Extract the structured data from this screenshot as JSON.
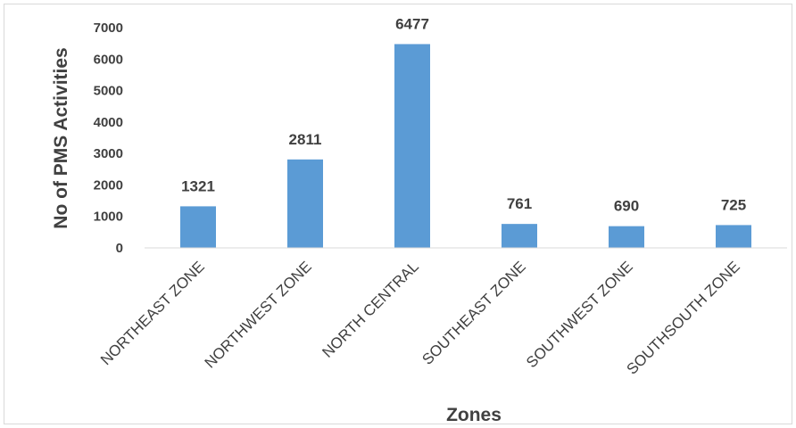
{
  "chart_data": {
    "type": "bar",
    "title": "",
    "xlabel": "Zones",
    "ylabel": "No of PMS Activities",
    "categories": [
      "NORTHEAST ZONE",
      "NORTHWEST ZONE",
      "NORTH CENTRAL",
      "SOUTHEAST ZONE",
      "SOUTHWEST ZONE",
      "SOUTHSOUTH ZONE"
    ],
    "values": [
      1321,
      2811,
      6477,
      761,
      690,
      725
    ],
    "data_labels": [
      "1321",
      "2811",
      "6477",
      "761",
      "690",
      "725"
    ],
    "ylim": [
      0,
      7000
    ],
    "yticks": [
      "0",
      "1000",
      "2000",
      "3000",
      "4000",
      "5000",
      "6000",
      "7000"
    ],
    "grid": false,
    "legend": "none",
    "colors": {
      "bar": "#5B9BD5",
      "axis": "#d9d9d9",
      "text": "#404040"
    }
  }
}
